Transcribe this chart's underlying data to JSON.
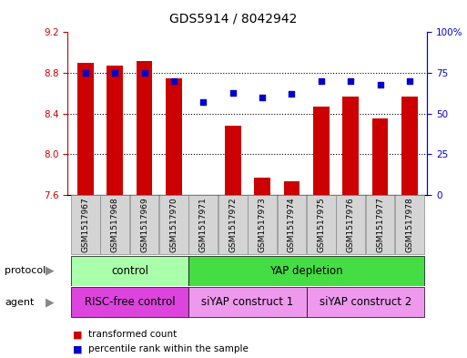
{
  "title": "GDS5914 / 8042942",
  "samples": [
    "GSM1517967",
    "GSM1517968",
    "GSM1517969",
    "GSM1517970",
    "GSM1517971",
    "GSM1517972",
    "GSM1517973",
    "GSM1517974",
    "GSM1517975",
    "GSM1517976",
    "GSM1517977",
    "GSM1517978"
  ],
  "bar_values": [
    8.9,
    8.87,
    8.92,
    8.75,
    7.605,
    8.28,
    7.77,
    7.74,
    8.47,
    8.57,
    8.35,
    8.57
  ],
  "dot_values": [
    75,
    75,
    75,
    70,
    57,
    63,
    60,
    62,
    70,
    70,
    68,
    70
  ],
  "ylim": [
    7.6,
    9.2
  ],
  "y2lim": [
    0,
    100
  ],
  "bar_color": "#cc0000",
  "dot_color": "#0000cc",
  "bar_bottom": 7.6,
  "yticks": [
    7.6,
    8.0,
    8.4,
    8.8,
    9.2
  ],
  "y2ticks": [
    0,
    25,
    50,
    75,
    100
  ],
  "y2tick_labels": [
    "0",
    "25",
    "50",
    "75",
    "100%"
  ],
  "grid_lines": [
    8.0,
    8.4,
    8.8
  ],
  "protocol_groups": [
    {
      "label": "control",
      "start": 0,
      "end": 4,
      "color": "#aaffaa"
    },
    {
      "label": "YAP depletion",
      "start": 4,
      "end": 12,
      "color": "#44dd44"
    }
  ],
  "agent_groups": [
    {
      "label": "RISC-free control",
      "start": 0,
      "end": 4,
      "color": "#dd44dd"
    },
    {
      "label": "siYAP construct 1",
      "start": 4,
      "end": 8,
      "color": "#ee99ee"
    },
    {
      "label": "siYAP construct 2",
      "start": 8,
      "end": 12,
      "color": "#ee99ee"
    }
  ],
  "legend_items": [
    {
      "label": "transformed count",
      "color": "#cc0000"
    },
    {
      "label": "percentile rank within the sample",
      "color": "#0000cc"
    }
  ],
  "title_fontsize": 10,
  "tick_fontsize": 7.5,
  "label_fontsize": 8,
  "sample_label_fontsize": 6.5,
  "row_label_fontsize": 8,
  "row_content_fontsize": 8.5
}
